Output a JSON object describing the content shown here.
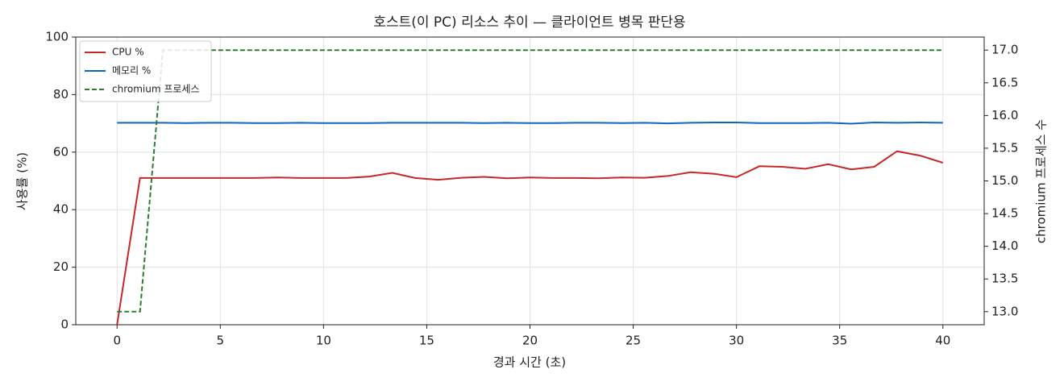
{
  "chart_data": {
    "type": "line",
    "title": "호스트(이 PC) 리소스 추이 — 클라이언트 병목 판단용",
    "xlabel": "경과 시간 (초)",
    "ylabel": "사용률 (%)",
    "y2label": "chromium 프로세스 수",
    "x": [
      0,
      1.11,
      2.22,
      3.33,
      4.44,
      5.56,
      6.67,
      7.78,
      8.89,
      10,
      11.11,
      12.22,
      13.33,
      14.44,
      15.56,
      16.67,
      17.78,
      18.89,
      20,
      21.11,
      22.22,
      23.33,
      24.44,
      25.56,
      26.67,
      27.78,
      28.89,
      30,
      31.11,
      32.22,
      33.33,
      34.44,
      35.56,
      36.67,
      37.78,
      38.89,
      40
    ],
    "series": [
      {
        "name": "CPU %",
        "color": "#c62828",
        "values": [
          0,
          51,
          51,
          51,
          51,
          51,
          51,
          51.2,
          51,
          51,
          51,
          51.5,
          52.8,
          51,
          50.4,
          51.1,
          51.4,
          50.9,
          51.2,
          51,
          51,
          50.9,
          51.2,
          51.1,
          51.7,
          53,
          52.5,
          51.3,
          55.1,
          54.9,
          54.2,
          55.8,
          54,
          54.9,
          60.3,
          58.8,
          56.3
        ]
      },
      {
        "name": "메모리 %",
        "color": "#1565c0",
        "values": [
          70.2,
          70.2,
          70.2,
          70.1,
          70.2,
          70.2,
          70.1,
          70.1,
          70.2,
          70.1,
          70.1,
          70.1,
          70.2,
          70.2,
          70.2,
          70.2,
          70.1,
          70.2,
          70.1,
          70.1,
          70.2,
          70.2,
          70.1,
          70.2,
          70.0,
          70.2,
          70.3,
          70.3,
          70.1,
          70.1,
          70.1,
          70.2,
          69.9,
          70.3,
          70.2,
          70.3,
          70.2
        ]
      },
      {
        "name": "chromium 프로세스",
        "color": "#2e7d32",
        "dashed": true,
        "axis": "y2",
        "values": [
          13,
          13,
          17,
          17,
          17,
          17,
          17,
          17,
          17,
          17,
          17,
          17,
          17,
          17,
          17,
          17,
          17,
          17,
          17,
          17,
          17,
          17,
          17,
          17,
          17,
          17,
          17,
          17,
          17,
          17,
          17,
          17,
          17,
          17,
          17,
          17,
          17
        ]
      }
    ],
    "xlim": [
      -2,
      42
    ],
    "xticks": [
      0,
      5,
      10,
      15,
      20,
      25,
      30,
      35,
      40
    ],
    "ylim": [
      0,
      100
    ],
    "yticks": [
      0,
      20,
      40,
      60,
      80,
      100
    ],
    "y2lim": [
      12.8,
      17.2
    ],
    "y2ticks": [
      {
        "value": 13,
        "label": "13.0"
      },
      {
        "value": 13.5,
        "label": "13.5"
      },
      {
        "value": 14,
        "label": "14.0"
      },
      {
        "value": 14.5,
        "label": "14.5"
      },
      {
        "value": 15,
        "label": "15.0"
      },
      {
        "value": 15.5,
        "label": "15.5"
      },
      {
        "value": 16,
        "label": "16.0"
      },
      {
        "value": 16.5,
        "label": "16.5"
      },
      {
        "value": 17,
        "label": "17.0"
      }
    ],
    "grid": true,
    "legend": "upper-left"
  }
}
